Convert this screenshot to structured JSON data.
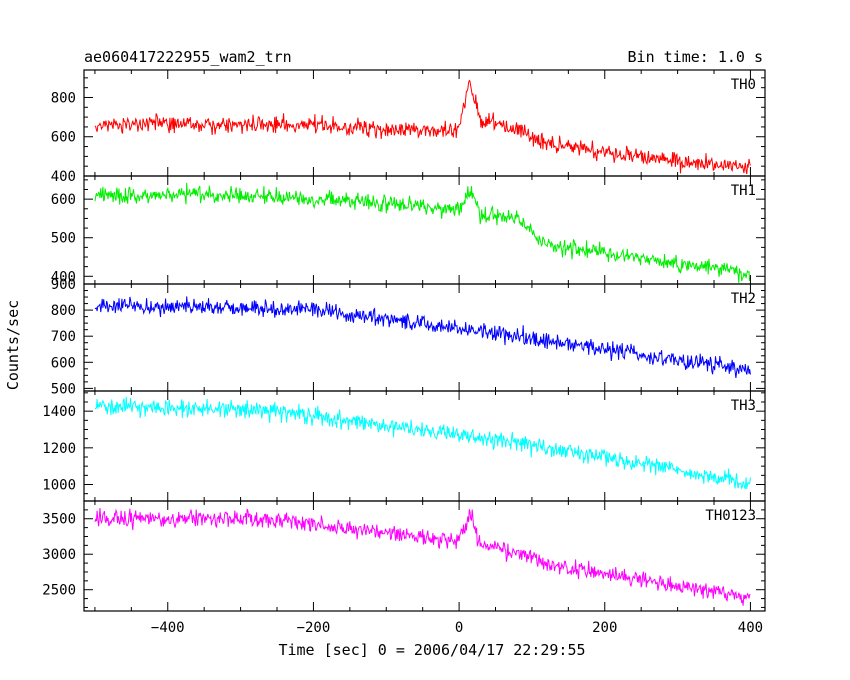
{
  "header": {
    "title": "ae060417222955_wam2_trn",
    "bin_time": "Bin time: 1.0 s"
  },
  "chart_data": {
    "type": "line",
    "title": "ae060417222955_wam2_trn",
    "subtitle": "Bin time: 1.0 s",
    "xlabel": "Time [sec] 0 = 2006/04/17 22:29:55",
    "ylabel": "Counts/sec",
    "xlim": [
      -515,
      420
    ],
    "x_data_range": [
      -500,
      400
    ],
    "xticks": [
      -400,
      -200,
      0,
      200,
      400
    ],
    "grid": false,
    "legend": "none",
    "panels": [
      {
        "name": "TH0",
        "color": "#ff0000",
        "ylim": [
          400,
          940
        ],
        "yticks": [
          400,
          600,
          800
        ],
        "approx_trend": [
          {
            "x": -500,
            "y": 655
          },
          {
            "x": -300,
            "y": 665
          },
          {
            "x": -150,
            "y": 650
          },
          {
            "x": -50,
            "y": 625
          },
          {
            "x": 0,
            "y": 640
          },
          {
            "x": 15,
            "y": 880
          },
          {
            "x": 30,
            "y": 680
          },
          {
            "x": 80,
            "y": 640
          },
          {
            "x": 110,
            "y": 570
          },
          {
            "x": 200,
            "y": 520
          },
          {
            "x": 300,
            "y": 475
          },
          {
            "x": 400,
            "y": 440
          }
        ]
      },
      {
        "name": "TH1",
        "color": "#00ee00",
        "ylim": [
          380,
          660
        ],
        "yticks": [
          400,
          500,
          600
        ],
        "approx_trend": [
          {
            "x": -500,
            "y": 610
          },
          {
            "x": -300,
            "y": 610
          },
          {
            "x": -100,
            "y": 590
          },
          {
            "x": 0,
            "y": 570
          },
          {
            "x": 15,
            "y": 620
          },
          {
            "x": 30,
            "y": 560
          },
          {
            "x": 80,
            "y": 550
          },
          {
            "x": 120,
            "y": 480
          },
          {
            "x": 200,
            "y": 460
          },
          {
            "x": 300,
            "y": 430
          },
          {
            "x": 400,
            "y": 410
          }
        ]
      },
      {
        "name": "TH2",
        "color": "#0000ff",
        "ylim": [
          490,
          900
        ],
        "yticks": [
          500,
          600,
          700,
          800,
          900
        ],
        "approx_trend": [
          {
            "x": -500,
            "y": 820
          },
          {
            "x": -200,
            "y": 800
          },
          {
            "x": 0,
            "y": 730
          },
          {
            "x": 200,
            "y": 650
          },
          {
            "x": 400,
            "y": 570
          }
        ]
      },
      {
        "name": "TH3",
        "color": "#00ffff",
        "ylim": [
          910,
          1510
        ],
        "yticks": [
          1000,
          1200,
          1400
        ],
        "approx_trend": [
          {
            "x": -500,
            "y": 1430
          },
          {
            "x": -250,
            "y": 1400
          },
          {
            "x": 0,
            "y": 1270
          },
          {
            "x": 200,
            "y": 1150
          },
          {
            "x": 400,
            "y": 1000
          }
        ]
      },
      {
        "name": "TH0123",
        "color": "#ff00ff",
        "ylim": [
          2200,
          3750
        ],
        "yticks": [
          2500,
          3000,
          3500
        ],
        "approx_trend": [
          {
            "x": -500,
            "y": 3520
          },
          {
            "x": -250,
            "y": 3480
          },
          {
            "x": -100,
            "y": 3300
          },
          {
            "x": 0,
            "y": 3180
          },
          {
            "x": 15,
            "y": 3580
          },
          {
            "x": 30,
            "y": 3130
          },
          {
            "x": 80,
            "y": 3030
          },
          {
            "x": 150,
            "y": 2800
          },
          {
            "x": 300,
            "y": 2560
          },
          {
            "x": 400,
            "y": 2400
          }
        ]
      }
    ]
  }
}
